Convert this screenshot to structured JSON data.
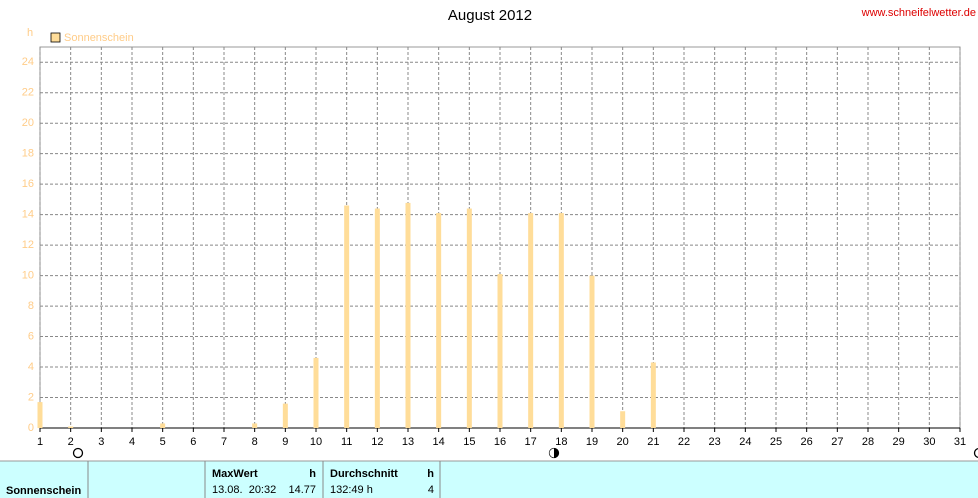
{
  "chart_data": {
    "type": "bar",
    "title": "August 2012",
    "source": "www.schneifelwetter.de",
    "y_label": "h",
    "x": [
      1,
      2,
      3,
      4,
      5,
      6,
      7,
      8,
      9,
      10,
      11,
      12,
      13,
      14,
      15,
      16,
      17,
      18,
      19,
      20,
      21,
      22,
      23,
      24,
      25,
      26,
      27,
      28,
      29,
      30,
      31
    ],
    "series": [
      {
        "name": "Sonnenschein",
        "color": "#ffdd99",
        "values": [
          1.7,
          0.1,
          0,
          0,
          0.3,
          0,
          0,
          0.3,
          1.6,
          4.6,
          14.6,
          14.4,
          14.77,
          14.1,
          14.4,
          10.1,
          14.1,
          14.1,
          10.0,
          1.1,
          4.3,
          0,
          0,
          0,
          0,
          0,
          0,
          0,
          0,
          0,
          0
        ]
      }
    ],
    "xlim": [
      1,
      31
    ],
    "xticks": [
      1,
      2,
      3,
      4,
      5,
      6,
      7,
      8,
      9,
      10,
      11,
      12,
      13,
      14,
      15,
      16,
      17,
      18,
      19,
      20,
      21,
      22,
      23,
      24,
      25,
      26,
      27,
      28,
      29,
      30,
      31
    ],
    "ylim": [
      0,
      25
    ],
    "yticks": [
      0,
      2,
      4,
      6,
      8,
      10,
      12,
      14,
      16,
      18,
      20,
      22,
      24
    ],
    "grid": true,
    "legend": "top-left"
  },
  "table": {
    "row_label": "Sonnenschein",
    "headers": [
      "MaxWert",
      "h",
      "Durchschnitt",
      "h"
    ],
    "cells": [
      "13.08.  20:32",
      "14.77",
      "132:49 h",
      "4"
    ]
  }
}
